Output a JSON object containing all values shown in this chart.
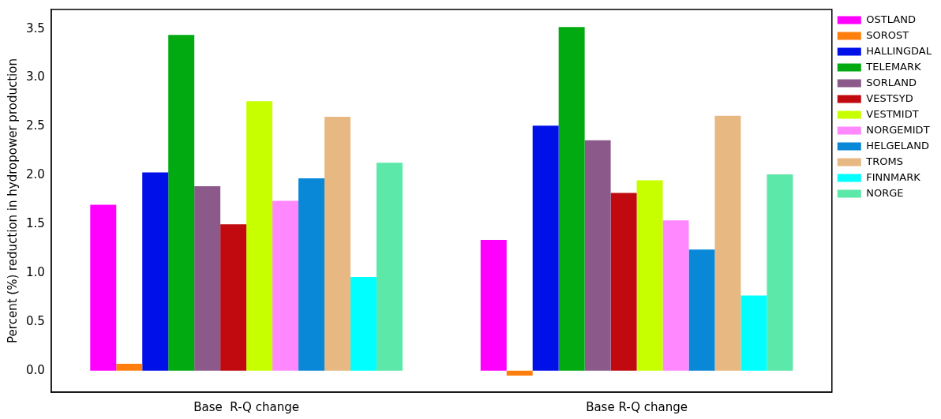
{
  "chart_data": {
    "type": "bar",
    "ylabel": "Percent (%) reduction in hydropower production",
    "categories": [
      "Base  R-Q change",
      "Base R-Q change"
    ],
    "series": [
      {
        "name": "OSTLAND",
        "color": "#ff00ff",
        "values": [
          1.7,
          1.34
        ]
      },
      {
        "name": "SOROST",
        "color": "#ff7f0e",
        "values": [
          0.07,
          -0.05
        ]
      },
      {
        "name": "HALLINGDAL",
        "color": "#0010e8",
        "values": [
          2.03,
          2.51
        ]
      },
      {
        "name": "TELEMARK",
        "color": "#00aa10",
        "values": [
          3.44,
          3.52
        ]
      },
      {
        "name": "SORLAND",
        "color": "#8b5a8b",
        "values": [
          1.89,
          2.36
        ]
      },
      {
        "name": "VESTSYD",
        "color": "#c00a10",
        "values": [
          1.5,
          1.82
        ]
      },
      {
        "name": "VESTMIDT",
        "color": "#c8ff00",
        "values": [
          2.76,
          1.95
        ]
      },
      {
        "name": "NORGEMIDT",
        "color": "#ff88ff",
        "values": [
          1.74,
          1.54
        ]
      },
      {
        "name": "HELGELAND",
        "color": "#0a88d8",
        "values": [
          1.97,
          1.24
        ]
      },
      {
        "name": "TROMS",
        "color": "#e8b882",
        "values": [
          2.6,
          2.61
        ]
      },
      {
        "name": "FINNMARK",
        "color": "#00ffff",
        "values": [
          0.96,
          0.77
        ]
      },
      {
        "name": "NORGE",
        "color": "#5ce8a8",
        "values": [
          2.13,
          2.01
        ]
      }
    ],
    "ylim": [
      -0.22,
      3.7
    ],
    "yticks": [
      {
        "value": 0,
        "label": "0.0"
      },
      {
        "value": 0.5,
        "label": "0.5"
      },
      {
        "value": 1,
        "label": "1.0"
      },
      {
        "value": 1.5,
        "label": "1.5"
      },
      {
        "value": 2,
        "label": "2.0"
      },
      {
        "value": 2.5,
        "label": "2.5"
      },
      {
        "value": 3,
        "label": "3.0"
      },
      {
        "value": 3.5,
        "label": "3.5"
      }
    ],
    "grid": false,
    "legend": "right"
  }
}
